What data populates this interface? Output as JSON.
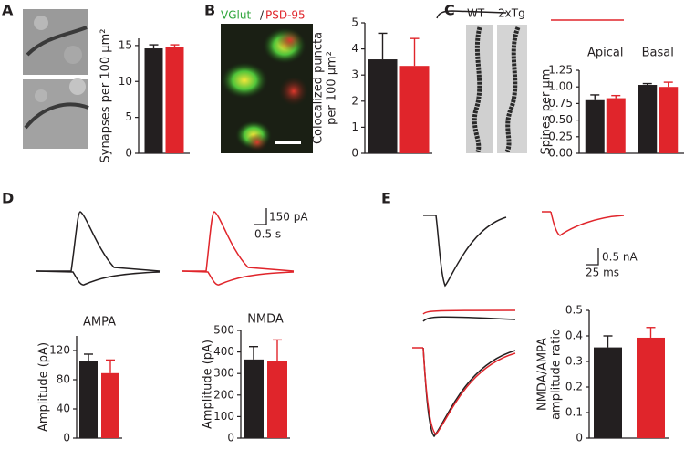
{
  "labels": {
    "panels": [
      "A",
      "B",
      "C",
      "D",
      "E"
    ],
    "vglut": "VGlut",
    "slash": "/",
    "psd95": "PSD-95",
    "wt": "WT",
    "tg": "2xTg",
    "scale_d": [
      "150 pA",
      "0.5 s"
    ],
    "scale_e": [
      "0.5 nA",
      "25 ms"
    ]
  },
  "chart_data": [
    {
      "type": "bar",
      "ylabel": [
        "Synapses per 100 μm²"
      ],
      "ylim": [
        0,
        16
      ],
      "yticks": [
        0,
        5,
        10,
        15
      ],
      "series": [
        {
          "color": "#231f20",
          "values": [
            14.6
          ],
          "errors": [
            0.5
          ]
        },
        {
          "color": "#e0252b",
          "values": [
            14.8
          ],
          "errors": [
            0.3
          ]
        }
      ]
    },
    {
      "type": "bar",
      "ylabel": [
        "Colocalized puncta",
        "per 100 μm²"
      ],
      "ylim": [
        0,
        5
      ],
      "yticks": [
        0,
        1,
        2,
        3,
        4,
        5
      ],
      "series": [
        {
          "color": "#231f20",
          "values": [
            3.6
          ],
          "errors": [
            1.0
          ]
        },
        {
          "color": "#e0252b",
          "values": [
            3.35
          ],
          "errors": [
            1.05
          ]
        }
      ]
    },
    {
      "type": "bar",
      "ylabel": [
        "Spines per μm"
      ],
      "categories": [
        "Apical",
        "Basal"
      ],
      "ylim": [
        0,
        1.25
      ],
      "yticks": [
        {
          "value": 0,
          "label": "0.00"
        },
        0.25,
        {
          "value": 0.5,
          "label": "0.50"
        },
        0.75,
        {
          "value": 1,
          "label": "1.00"
        },
        1.25
      ],
      "series": [
        {
          "color": "#231f20",
          "values": [
            0.8,
            1.03
          ],
          "errors": [
            0.08,
            0.02
          ]
        },
        {
          "color": "#e0252b",
          "values": [
            0.83,
            1.0
          ],
          "errors": [
            0.04,
            0.07
          ]
        }
      ]
    },
    {
      "type": "bar",
      "title": "AMPA",
      "ylabel": [
        "Amplitude (pA)"
      ],
      "ylim": [
        0,
        140
      ],
      "yticks": [
        0,
        40,
        80,
        120
      ],
      "series": [
        {
          "color": "#231f20",
          "values": [
            105
          ],
          "errors": [
            10
          ]
        },
        {
          "color": "#e0252b",
          "values": [
            89
          ],
          "errors": [
            18
          ]
        }
      ]
    },
    {
      "type": "bar",
      "title": "NMDA",
      "ylabel": [
        "Amplitude (pA)"
      ],
      "ylim": [
        0,
        500
      ],
      "yticks": [
        0,
        100,
        200,
        300,
        400,
        500
      ],
      "series": [
        {
          "color": "#231f20",
          "values": [
            365
          ],
          "errors": [
            60
          ]
        },
        {
          "color": "#e0252b",
          "values": [
            358
          ],
          "errors": [
            98
          ]
        }
      ]
    },
    {
      "type": "bar",
      "ylabel": [
        "NMDA/AMPA",
        "amplitude ratio"
      ],
      "ylim": [
        0,
        0.5
      ],
      "yticks": [
        0,
        0.1,
        0.2,
        0.3,
        0.4,
        0.5
      ],
      "series": [
        {
          "color": "#231f20",
          "values": [
            0.355
          ],
          "errors": [
            0.045
          ]
        },
        {
          "color": "#e0252b",
          "values": [
            0.393
          ],
          "errors": [
            0.04
          ]
        }
      ]
    }
  ]
}
